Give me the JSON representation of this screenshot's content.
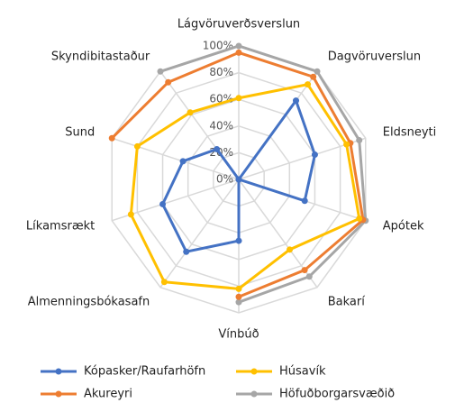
{
  "chart_data": {
    "type": "radar",
    "categories": [
      "Lágvöruverðsverslun",
      "Dagvöruverslun",
      "Eldsneyti",
      "Apótek",
      "Bakarí",
      "Vínbúð",
      "Almenningsbókasafn",
      "Líkamsrækt",
      "Sund",
      "Skyndibitastaður"
    ],
    "ylim": [
      0,
      100
    ],
    "yticks": [
      {
        "value": 0,
        "label": "0%"
      },
      {
        "value": 20,
        "label": "20%"
      },
      {
        "value": 40,
        "label": "40%"
      },
      {
        "value": 60,
        "label": "60%"
      },
      {
        "value": 80,
        "label": "80%"
      },
      {
        "value": 100,
        "label": "100%"
      }
    ],
    "grid": true,
    "legend": "bottom",
    "series": [
      {
        "name": "Höfuðborgarsvæðið",
        "color": "#a6a6a6",
        "values": [
          100,
          100,
          95,
          100,
          90,
          92,
          null,
          null,
          null,
          100
        ]
      },
      {
        "name": "Akureyri",
        "color": "#ed7d31",
        "values": [
          95,
          95,
          88,
          98,
          84,
          88,
          null,
          null,
          100,
          90
        ]
      },
      {
        "name": "Húsavík",
        "color": "#ffc000",
        "values": [
          61,
          88,
          85,
          95,
          65,
          82,
          95,
          85,
          80,
          62
        ]
      },
      {
        "name": "Kópasker/Raufarhöfn",
        "color": "#4472c4",
        "values": [
          0,
          73,
          60,
          52,
          0,
          46,
          67,
          60,
          44,
          28
        ]
      }
    ]
  }
}
